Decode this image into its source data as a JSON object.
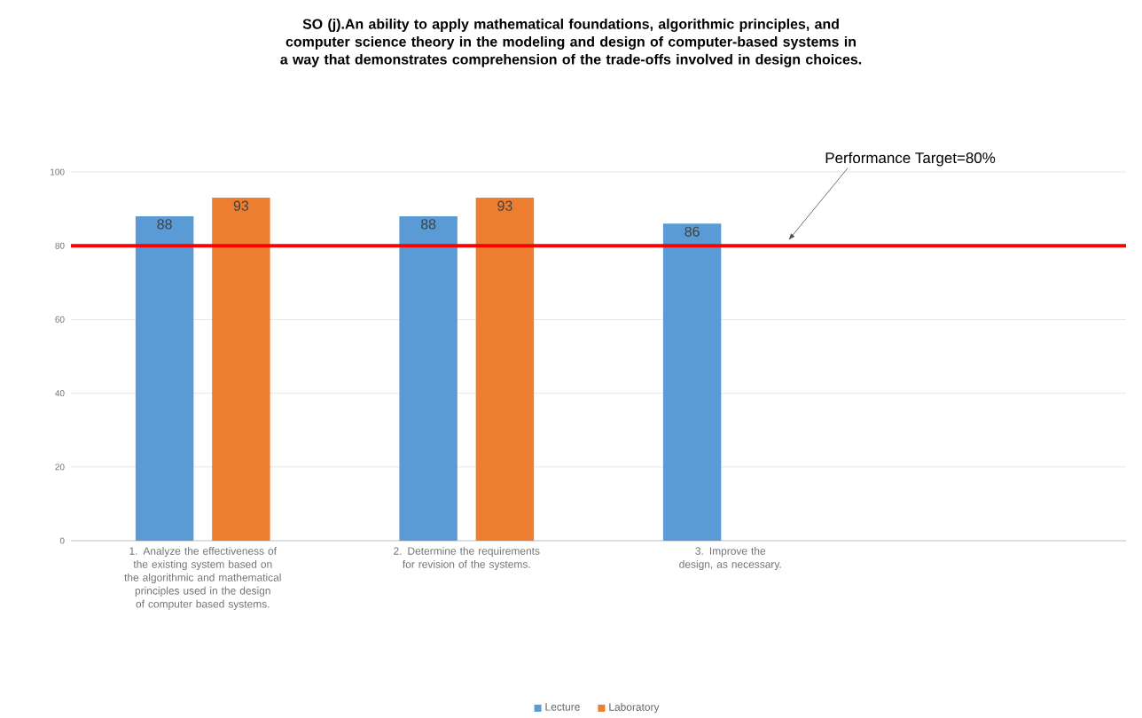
{
  "chart_data": {
    "type": "bar",
    "title": "SO (j).An ability to apply mathematical foundations, algorithmic principles, and computer science theory in the modeling and design of computer-based systems in a way that demonstrates comprehension of the trade-offs involved in design choices.",
    "categories": [
      "1. Analyze the effectiveness of the existing system based on the algorithmic and mathematical principles used in the design of computer based systems.",
      "2. Determine the requirements for revision of the systems.",
      "3. Improve the design, as necessary.",
      null
    ],
    "series": [
      {
        "name": "Lecture",
        "color": "#5b9bd5",
        "values": [
          88,
          88,
          86,
          null
        ]
      },
      {
        "name": "Laboratory",
        "color": "#ed7d31",
        "values": [
          93,
          93,
          null,
          null
        ]
      }
    ],
    "ylim": [
      0,
      100
    ],
    "yticks": [
      0,
      20,
      40,
      60,
      80,
      100
    ],
    "grid": "y",
    "legend": "bottom",
    "data_labels": true,
    "ref_lines": [
      {
        "axis": "y",
        "value": 80,
        "label": "Performance Target=80%",
        "color": "#ff0000"
      }
    ]
  }
}
